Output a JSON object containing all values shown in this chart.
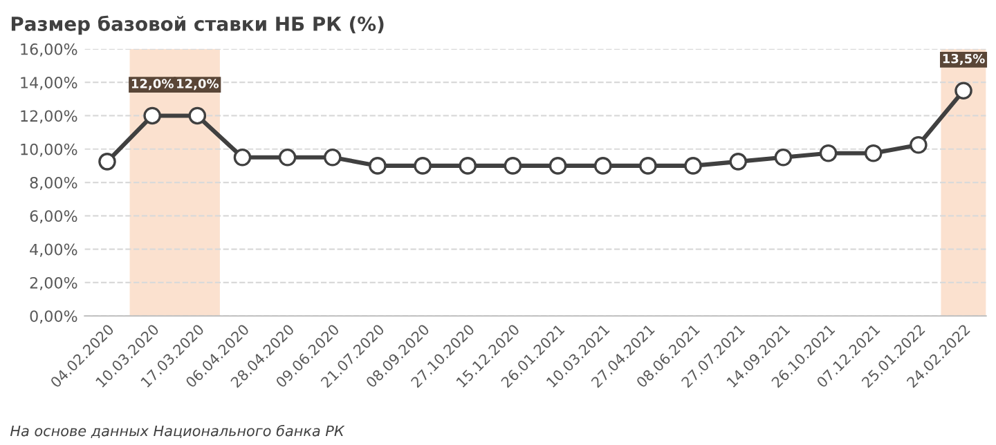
{
  "chart_data": {
    "type": "line",
    "title": "Размер базовой ставки НБ РК (%)",
    "categories": [
      "04.02.2020",
      "10.03.2020",
      "17.03.2020",
      "06.04.2020",
      "28.04.2020",
      "09.06.2020",
      "21.07.2020",
      "08.09.2020",
      "27.10.2020",
      "15.12.2020",
      "26.01.2021",
      "10.03.2021",
      "27.04.2021",
      "08.06.2021",
      "27.07.2021",
      "14.09.2021",
      "26.10.2021",
      "07.12.2021",
      "25.01.2022",
      "24.02.2022"
    ],
    "series": [
      {
        "color": "#404040",
        "values": [
          9.25,
          12,
          12,
          9.5,
          9.5,
          9.5,
          9,
          9,
          9,
          9,
          9,
          9,
          9,
          9,
          9.25,
          9.5,
          9.75,
          9.75,
          10.25,
          13.5
        ],
        "value_labels": [
          null,
          "12,0%",
          "12,0%",
          null,
          null,
          null,
          null,
          null,
          null,
          null,
          null,
          null,
          null,
          null,
          null,
          null,
          null,
          null,
          null,
          "13,5%"
        ]
      }
    ],
    "marker": "circle",
    "line_style": "solid",
    "ylim": [
      0,
      16
    ],
    "yticks": [
      {
        "value": 0,
        "label": "0,00%"
      },
      {
        "value": 2,
        "label": "2,00%"
      },
      {
        "value": 4,
        "label": "4,00%"
      },
      {
        "value": 6,
        "label": "6,00%"
      },
      {
        "value": 8,
        "label": "8,00%"
      },
      {
        "value": 10,
        "label": "10,00%"
      },
      {
        "value": 12,
        "label": "12,00%"
      },
      {
        "value": 14,
        "label": "14,00%"
      },
      {
        "value": 16,
        "label": "16,00%"
      }
    ],
    "grid": "y",
    "bands": [
      {
        "axis": "x",
        "from": "10.03.2020",
        "to": "17.03.2020",
        "color": "#fbe1cf"
      },
      {
        "axis": "x",
        "from": "24.02.2022",
        "to": "24.02.2022",
        "color": "#fbe1cf"
      }
    ],
    "annotations": [
      "На основе данных Национального банка РК"
    ]
  }
}
